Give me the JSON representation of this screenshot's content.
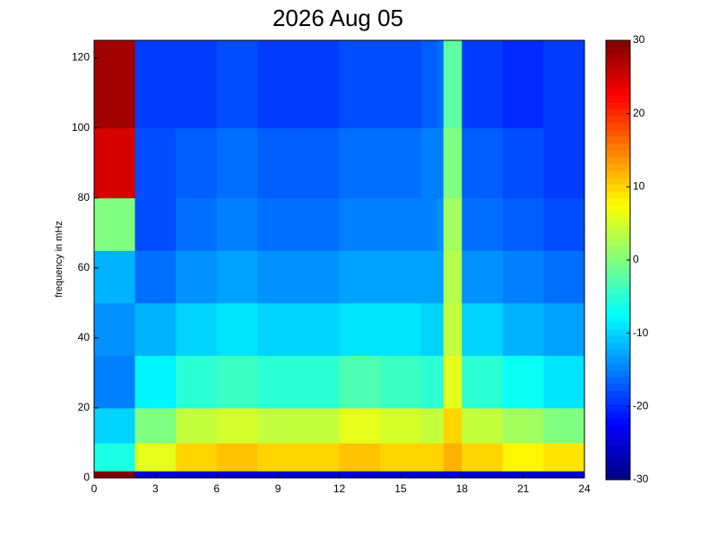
{
  "chart_data": {
    "type": "heatmap",
    "title": "2026 Aug 05",
    "ylabel": "frequency in mHz",
    "colormap": "jet",
    "x_edges": [
      0,
      2,
      4,
      6,
      8,
      10,
      12,
      14,
      16,
      16.8,
      17.1,
      18,
      20,
      22,
      24
    ],
    "y_edges": [
      0,
      2,
      10,
      20,
      35,
      50,
      65,
      80,
      100,
      125
    ],
    "values": [
      [
        30,
        -25,
        -25,
        -25,
        -25,
        -25,
        -25,
        -25,
        -25,
        -25,
        -25,
        -25,
        -25,
        -25
      ],
      [
        -6,
        6,
        10,
        11,
        10,
        10,
        11,
        10,
        10,
        10,
        12,
        10,
        8,
        9
      ],
      [
        -10,
        0,
        4,
        5,
        4,
        4,
        6,
        5,
        4,
        4,
        10,
        4,
        2,
        0
      ],
      [
        -15,
        -8,
        -5,
        -4,
        -5,
        -5,
        -3,
        -4,
        -5,
        -5,
        6,
        -5,
        -7,
        -9
      ],
      [
        -14,
        -12,
        -10,
        -9,
        -10,
        -10,
        -9,
        -9,
        -10,
        -10,
        4,
        -10,
        -12,
        -13
      ],
      [
        -12,
        -16,
        -14,
        -13,
        -14,
        -14,
        -13,
        -13,
        -13,
        -13,
        3,
        -14,
        -15,
        -16
      ],
      [
        0,
        -18,
        -16,
        -15,
        -16,
        -16,
        -15,
        -15,
        -15,
        -14,
        2,
        -16,
        -17,
        -18
      ],
      [
        25,
        -18,
        -17,
        -16,
        -17,
        -17,
        -16,
        -16,
        -15,
        -15,
        0,
        -17,
        -18,
        -19
      ],
      [
        28,
        -19,
        -19,
        -18,
        -19,
        -19,
        -18,
        -18,
        -17,
        -16,
        -2,
        -19,
        -20,
        -19
      ]
    ],
    "xlim": [
      0,
      24
    ],
    "xticks": [
      0,
      3,
      6,
      9,
      12,
      15,
      18,
      21,
      24
    ],
    "ylim": [
      0,
      125
    ],
    "yticks": [
      0,
      20,
      40,
      60,
      80,
      100,
      120
    ],
    "clim": [
      -30,
      30
    ],
    "cticks": [
      -30,
      -20,
      -10,
      0,
      10,
      20,
      30
    ]
  }
}
